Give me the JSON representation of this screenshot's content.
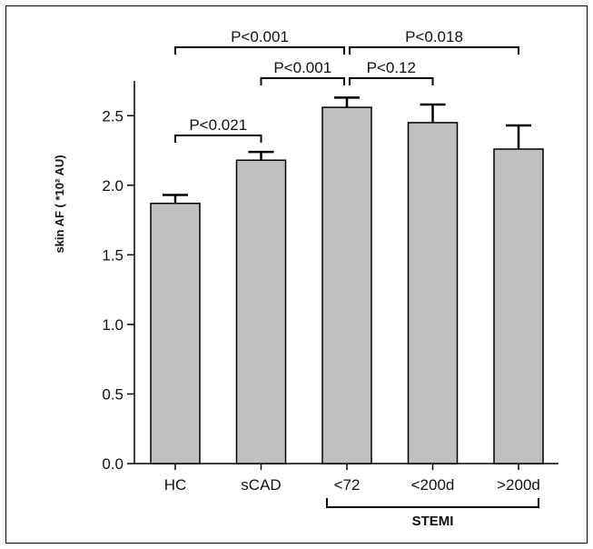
{
  "chart_data": {
    "type": "bar",
    "categories": [
      "HC",
      "sCAD",
      "<72",
      "<200d",
      ">200d"
    ],
    "values": [
      1.87,
      2.18,
      2.56,
      2.45,
      2.26
    ],
    "errors": [
      0.06,
      0.06,
      0.07,
      0.13,
      0.17
    ],
    "ylabel": "skin AF ( *10² AU)",
    "ylim": [
      0.0,
      2.75
    ],
    "yticks": [
      0.0,
      0.5,
      1.0,
      1.5,
      2.0,
      2.5
    ],
    "ytick_labels": [
      "0.0",
      "0.5",
      "1.0",
      "1.5",
      "2.0",
      "2.5"
    ],
    "bar_color": "#c0c0c0",
    "significance": [
      {
        "from": 0,
        "to": 1,
        "label": "P<0.021",
        "level": 0
      },
      {
        "from": 1,
        "to": 2,
        "label": "P<0.001",
        "level": 1
      },
      {
        "from": 2,
        "to": 3,
        "label": "P<0.12",
        "level": 1
      },
      {
        "from": 0,
        "to": 2,
        "label": "P<0.001",
        "level": 2
      },
      {
        "from": 2,
        "to": 4,
        "label": "P<0.018",
        "level": 2
      }
    ],
    "group": {
      "label": "STEMI",
      "from": 2,
      "to": 4
    }
  }
}
